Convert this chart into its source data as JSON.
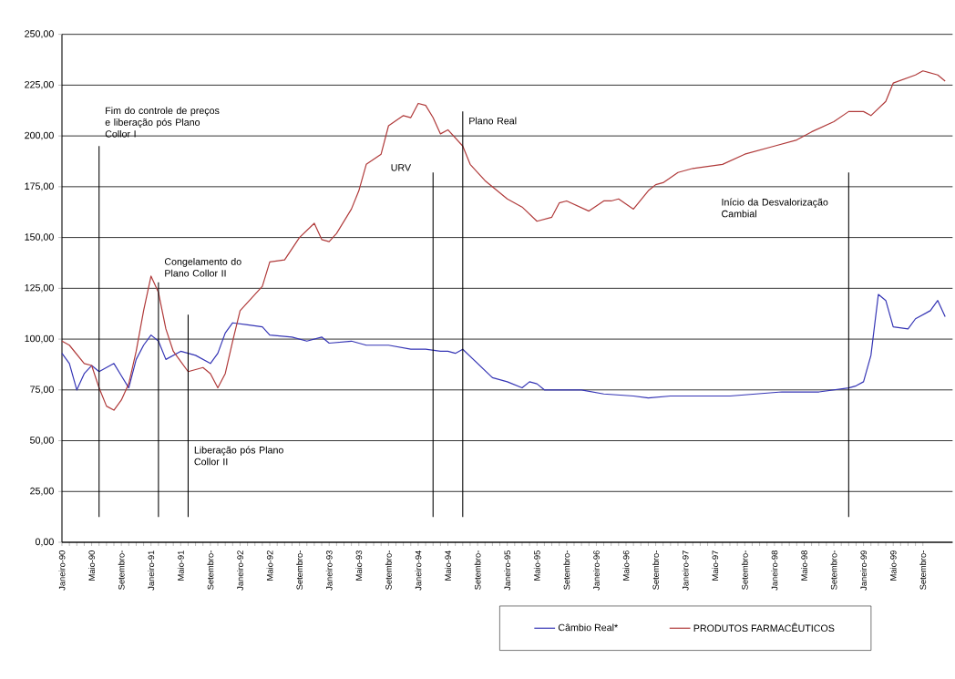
{
  "chart_data": {
    "type": "line",
    "xlim": [
      "1990-01",
      "2000-01"
    ],
    "xticks": [
      {
        "value": "1990-01",
        "label": "Janeiro-90"
      },
      {
        "value": "1990-05",
        "label": "Maio-90"
      },
      {
        "value": "1990-09",
        "label": "Setembro-"
      },
      {
        "value": "1991-01",
        "label": "Janeiro-91"
      },
      {
        "value": "1991-05",
        "label": "Maio-91"
      },
      {
        "value": "1991-09",
        "label": "Setembro-"
      },
      {
        "value": "1992-01",
        "label": "Janeiro-92"
      },
      {
        "value": "1992-05",
        "label": "Maio-92"
      },
      {
        "value": "1992-09",
        "label": "Setembro-"
      },
      {
        "value": "1993-01",
        "label": "Janeiro-93"
      },
      {
        "value": "1993-05",
        "label": "Maio-93"
      },
      {
        "value": "1993-09",
        "label": "Setembro-"
      },
      {
        "value": "1994-01",
        "label": "Janeiro-94"
      },
      {
        "value": "1994-05",
        "label": "Maio-94"
      },
      {
        "value": "1994-09",
        "label": "Setembro-"
      },
      {
        "value": "1995-01",
        "label": "Janeiro-95"
      },
      {
        "value": "1995-05",
        "label": "Maio-95"
      },
      {
        "value": "1995-09",
        "label": "Setembro-"
      },
      {
        "value": "1996-01",
        "label": "Janeiro-96"
      },
      {
        "value": "1996-05",
        "label": "Maio-96"
      },
      {
        "value": "1996-09",
        "label": "Setembro-"
      },
      {
        "value": "1997-01",
        "label": "Janeiro-97"
      },
      {
        "value": "1997-05",
        "label": "Maio-97"
      },
      {
        "value": "1997-09",
        "label": "Setembro-"
      },
      {
        "value": "1998-01",
        "label": "Janeiro-98"
      },
      {
        "value": "1998-05",
        "label": "Maio-98"
      },
      {
        "value": "1998-09",
        "label": "Setembro-"
      },
      {
        "value": "1999-01",
        "label": "Janeiro-99"
      },
      {
        "value": "1999-05",
        "label": "Maio-99"
      },
      {
        "value": "1999-09",
        "label": "Setembro-"
      }
    ],
    "ylim": [
      0,
      250
    ],
    "yticks": [
      {
        "value": 0,
        "label": "0,00"
      },
      {
        "value": 25,
        "label": "25,00"
      },
      {
        "value": 50,
        "label": "50,00"
      },
      {
        "value": 75,
        "label": "75,00"
      },
      {
        "value": 100,
        "label": "100,00"
      },
      {
        "value": 125,
        "label": "125,00"
      },
      {
        "value": 150,
        "label": "150,00"
      },
      {
        "value": 175,
        "label": "175,00"
      },
      {
        "value": 200,
        "label": "200,00"
      },
      {
        "value": 225,
        "label": "225,00"
      },
      {
        "value": 250,
        "label": "250,00"
      }
    ],
    "grid": "y",
    "legend": "bottom",
    "series": [
      {
        "name": "Câmbio Real*",
        "color": "#3535b5",
        "x": [
          "1990-01",
          "1990-02",
          "1990-03",
          "1990-04",
          "1990-05",
          "1990-06",
          "1990-08",
          "1990-09",
          "1990-10",
          "1990-11",
          "1990-12",
          "1991-01",
          "1991-02",
          "1991-03",
          "1991-05",
          "1991-07",
          "1991-09",
          "1991-10",
          "1991-11",
          "1991-12",
          "1992-02",
          "1992-04",
          "1992-05",
          "1992-08",
          "1992-10",
          "1992-12",
          "1993-01",
          "1993-04",
          "1993-06",
          "1993-09",
          "1993-12",
          "1994-02",
          "1994-04",
          "1994-05",
          "1994-06",
          "1994-07",
          "1994-09",
          "1994-11",
          "1995-01",
          "1995-03",
          "1995-04",
          "1995-05",
          "1995-06",
          "1995-11",
          "1996-02",
          "1996-06",
          "1996-08",
          "1996-11",
          "1997-07",
          "1998-02",
          "1998-07",
          "1998-11",
          "1998-12",
          "1999-01",
          "1999-02",
          "1999-03",
          "1999-04",
          "1999-05",
          "1999-07",
          "1999-08",
          "1999-10",
          "1999-11",
          "1999-12"
        ],
        "values": [
          93,
          88,
          75,
          83,
          87,
          84,
          88,
          82,
          76,
          90,
          97,
          102,
          99,
          90,
          94,
          92,
          88,
          93,
          103,
          108,
          107,
          106,
          102,
          101,
          99,
          101,
          98,
          99,
          97,
          97,
          95,
          95,
          94,
          94,
          93,
          95,
          88,
          81,
          79,
          76,
          79,
          78,
          75,
          75,
          73,
          72,
          71,
          72,
          72,
          74,
          74,
          76,
          77,
          79,
          92,
          122,
          119,
          106,
          105,
          110,
          114,
          119,
          111
        ]
      },
      {
        "name": "PRODUTOS FARMACÊUTICOS",
        "color": "#b03a3a",
        "x": [
          "1990-01",
          "1990-02",
          "1990-04",
          "1990-05",
          "1990-06",
          "1990-07",
          "1990-08",
          "1990-09",
          "1990-10",
          "1990-11",
          "1990-12",
          "1991-01",
          "1991-02",
          "1991-03",
          "1991-04",
          "1991-05",
          "1991-06",
          "1991-08",
          "1991-09",
          "1991-10",
          "1991-11",
          "1991-12",
          "1992-01",
          "1992-02",
          "1992-04",
          "1992-05",
          "1992-07",
          "1992-09",
          "1992-11",
          "1992-12",
          "1993-01",
          "1993-02",
          "1993-04",
          "1993-05",
          "1993-06",
          "1993-08",
          "1993-09",
          "1993-11",
          "1993-12",
          "1994-01",
          "1994-02",
          "1994-03",
          "1994-04",
          "1994-05",
          "1994-07",
          "1994-08",
          "1994-10",
          "1995-01",
          "1995-03",
          "1995-05",
          "1995-07",
          "1995-08",
          "1995-09",
          "1995-12",
          "1996-02",
          "1996-03",
          "1996-04",
          "1996-06",
          "1996-08",
          "1996-09",
          "1996-10",
          "1996-12",
          "1997-02",
          "1997-06",
          "1997-09",
          "1998-01",
          "1998-04",
          "1998-06",
          "1998-09",
          "1998-11",
          "1999-01",
          "1999-02",
          "1999-04",
          "1999-05",
          "1999-08",
          "1999-09",
          "1999-11",
          "1999-12"
        ],
        "values": [
          99,
          97,
          88,
          87,
          76,
          67,
          65,
          70,
          78,
          94,
          114,
          131,
          123,
          105,
          94,
          89,
          84,
          86,
          83,
          76,
          83,
          99,
          114,
          118,
          126,
          138,
          139,
          150,
          157,
          149,
          148,
          152,
          164,
          173,
          186,
          191,
          205,
          210,
          209,
          216,
          215,
          209,
          201,
          203,
          195,
          186,
          178,
          169,
          165,
          158,
          160,
          167,
          168,
          163,
          168,
          168,
          169,
          164,
          173,
          176,
          177,
          182,
          184,
          186,
          191,
          195,
          198,
          202,
          207,
          212,
          212,
          210,
          217,
          226,
          230,
          232,
          230,
          227
        ]
      }
    ],
    "ref_lines": [
      {
        "axis": "x",
        "value": "1990-06",
        "label": "Fim do controle de preços e liberação pós Plano Collor I",
        "color": "#000000"
      },
      {
        "axis": "x",
        "value": "1991-02",
        "label": "Congelamento do Plano Collor II",
        "color": "#000000"
      },
      {
        "axis": "x",
        "value": "1991-06",
        "label": "Liberação pós Plano Collor II",
        "color": "#000000"
      },
      {
        "axis": "x",
        "value": "1994-03",
        "label": "URV",
        "color": "#000000"
      },
      {
        "axis": "x",
        "value": "1994-07",
        "label": "Plano Real",
        "color": "#000000"
      },
      {
        "axis": "x",
        "value": "1998-11",
        "label": "Início da Desvalorização Cambial",
        "color": "#000000"
      }
    ]
  }
}
